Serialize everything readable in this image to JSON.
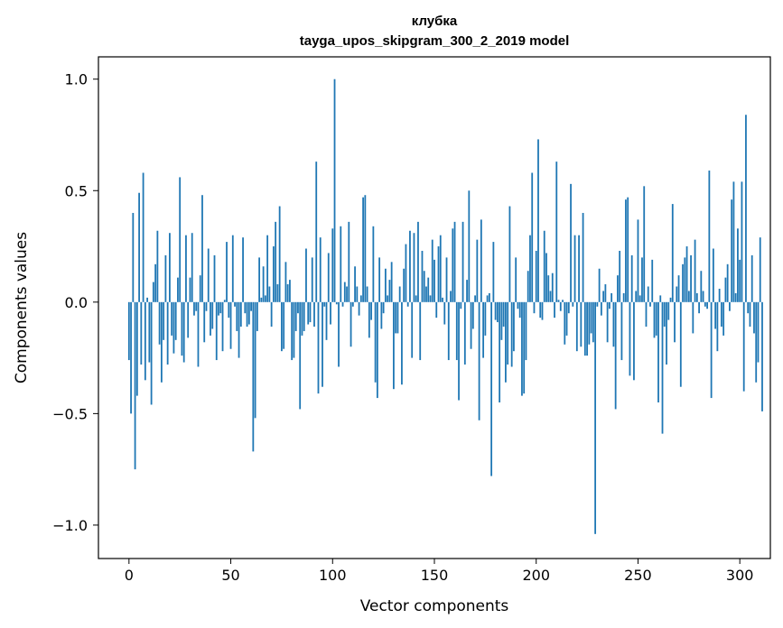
{
  "chart_data": {
    "type": "bar",
    "title": "клубка",
    "subtitle": "tayga_upos_skipgram_300_2_2019 model",
    "xlabel": "Vector components",
    "ylabel": "Components values",
    "xlim": [
      -15,
      315
    ],
    "ylim": [
      -1.15,
      1.1
    ],
    "xticks": [
      0,
      50,
      100,
      150,
      200,
      250,
      300
    ],
    "xtick_labels": [
      "0",
      "50",
      "100",
      "150",
      "200",
      "250",
      "300"
    ],
    "yticks": [
      -1.0,
      -0.5,
      0.0,
      0.5,
      1.0
    ],
    "ytick_labels": [
      "−1.0",
      "−0.5",
      "0.0",
      "0.5",
      "1.0"
    ],
    "grid": false,
    "bar_color": "#1f77b4",
    "series": [
      {
        "name": "клубка",
        "values": [
          -0.26,
          -0.5,
          0.4,
          -0.75,
          -0.42,
          0.49,
          -0.28,
          0.58,
          -0.35,
          0.02,
          -0.27,
          -0.46,
          0.09,
          0.17,
          0.32,
          -0.19,
          -0.36,
          -0.17,
          0.21,
          -0.28,
          0.31,
          -0.15,
          -0.23,
          -0.17,
          0.11,
          0.56,
          -0.24,
          -0.27,
          0.3,
          -0.16,
          0.11,
          0.31,
          -0.06,
          -0.04,
          -0.29,
          0.12,
          0.48,
          -0.18,
          -0.04,
          0.24,
          -0.15,
          -0.12,
          0.21,
          -0.26,
          -0.06,
          -0.05,
          -0.22,
          0.01,
          0.27,
          -0.07,
          -0.21,
          0.3,
          -0.02,
          -0.13,
          -0.25,
          -0.11,
          0.29,
          -0.05,
          -0.11,
          -0.1,
          -0.04,
          -0.67,
          -0.52,
          -0.13,
          0.2,
          0.02,
          0.16,
          0.03,
          0.3,
          0.07,
          -0.11,
          0.25,
          0.36,
          0.08,
          0.43,
          -0.22,
          -0.21,
          0.18,
          0.08,
          0.1,
          -0.26,
          -0.25,
          -0.13,
          -0.05,
          -0.48,
          -0.15,
          -0.13,
          0.24,
          -0.1,
          -0.09,
          0.2,
          -0.11,
          0.63,
          -0.41,
          0.29,
          -0.38,
          -0.02,
          -0.17,
          0.22,
          -0.1,
          0.33,
          1.0,
          -0.01,
          -0.29,
          0.34,
          -0.02,
          0.09,
          0.07,
          0.36,
          -0.2,
          -0.02,
          0.16,
          0.07,
          -0.06,
          0.03,
          0.47,
          0.48,
          0.07,
          -0.16,
          -0.08,
          0.34,
          -0.36,
          -0.43,
          0.2,
          -0.12,
          -0.05,
          0.15,
          0.03,
          0.1,
          0.18,
          -0.39,
          -0.14,
          -0.14,
          0.07,
          -0.37,
          0.15,
          0.26,
          -0.02,
          0.32,
          -0.25,
          0.31,
          0.03,
          0.36,
          -0.26,
          0.23,
          0.14,
          0.07,
          0.11,
          0.03,
          0.28,
          0.19,
          -0.07,
          0.25,
          0.3,
          0.02,
          -0.1,
          0.2,
          -0.26,
          0.05,
          0.33,
          0.36,
          -0.26,
          -0.44,
          -0.03,
          0.36,
          -0.28,
          0.1,
          0.5,
          -0.21,
          -0.12,
          0.03,
          0.28,
          -0.53,
          0.37,
          -0.25,
          -0.15,
          0.03,
          0.04,
          -0.78,
          0.27,
          -0.08,
          -0.09,
          -0.45,
          -0.17,
          -0.11,
          -0.36,
          -0.28,
          0.43,
          -0.29,
          -0.22,
          0.2,
          -0.03,
          -0.07,
          -0.42,
          -0.41,
          -0.26,
          0.14,
          0.3,
          0.58,
          -0.05,
          0.23,
          0.73,
          -0.07,
          -0.08,
          0.32,
          0.22,
          0.12,
          0.05,
          0.13,
          -0.07,
          0.63,
          0.01,
          -0.04,
          0.01,
          -0.19,
          -0.15,
          -0.05,
          0.53,
          -0.02,
          0.3,
          -0.22,
          0.3,
          -0.2,
          0.4,
          -0.24,
          -0.24,
          -0.19,
          -0.14,
          -0.18,
          -1.04,
          -0.02,
          0.15,
          -0.06,
          0.05,
          0.08,
          -0.18,
          -0.03,
          0.04,
          -0.2,
          -0.48,
          0.12,
          0.23,
          -0.26,
          0.04,
          0.46,
          0.47,
          -0.33,
          0.21,
          -0.35,
          0.05,
          0.37,
          0.03,
          0.2,
          0.52,
          -0.11,
          0.07,
          -0.02,
          0.19,
          -0.16,
          -0.15,
          -0.45,
          0.03,
          -0.59,
          -0.11,
          -0.28,
          -0.08,
          0.02,
          0.44,
          -0.18,
          0.07,
          0.12,
          -0.38,
          0.17,
          0.2,
          0.25,
          0.05,
          0.21,
          -0.14,
          0.28,
          0.04,
          -0.05,
          0.14,
          0.05,
          -0.02,
          -0.03,
          0.59,
          -0.43,
          0.24,
          -0.12,
          -0.22,
          0.06,
          -0.11,
          -0.15,
          0.11,
          0.17,
          -0.04,
          0.46,
          0.54,
          0.04,
          0.33,
          0.19,
          0.54,
          -0.4,
          0.84,
          -0.05,
          -0.11,
          0.21,
          -0.14,
          -0.36,
          -0.27,
          0.29,
          -0.49
        ]
      }
    ]
  }
}
